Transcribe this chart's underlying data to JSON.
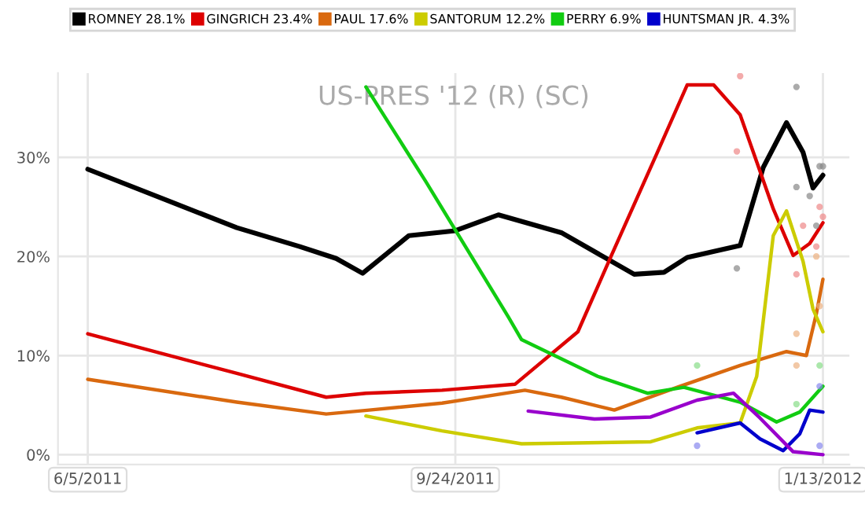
{
  "chart_data": {
    "type": "line",
    "title": "US-PRES '12 (R) (SC)",
    "xlim": [
      "2011-05-27",
      "2012-01-21"
    ],
    "ylim": [
      -1,
      38.5
    ],
    "xticks": [
      {
        "value": "2011-06-05",
        "label": "6/5/2011"
      },
      {
        "value": "2011-09-24",
        "label": "9/24/2011"
      },
      {
        "value": "2012-01-13",
        "label": "1/13/2012"
      }
    ],
    "yticks": [
      {
        "value": 0,
        "label": "0%"
      },
      {
        "value": 10,
        "label": "10%"
      },
      {
        "value": 20,
        "label": "20%"
      },
      {
        "value": 30,
        "label": "30%"
      }
    ],
    "grid": true,
    "legend": "top",
    "series": [
      {
        "name": "ROMNEY 28.1%",
        "color": "#000000",
        "x": [
          "2011-06-05",
          "2011-07-20",
          "2011-08-08",
          "2011-08-19",
          "2011-08-27",
          "2011-09-10",
          "2011-09-24",
          "2011-10-07",
          "2011-10-26",
          "2011-11-17",
          "2011-11-26",
          "2011-12-03",
          "2011-12-19",
          "2011-12-26",
          "2012-01-02",
          "2012-01-07",
          "2012-01-10",
          "2012-01-13"
        ],
        "values": [
          28.8,
          22.9,
          21.0,
          19.8,
          18.3,
          22.1,
          22.6,
          24.2,
          22.4,
          18.2,
          18.4,
          19.9,
          21.1,
          29.0,
          33.5,
          30.5,
          26.9,
          28.2
        ]
      },
      {
        "name": "GINGRICH 23.4%",
        "color": "#dd0000",
        "x": [
          "2011-06-05",
          "2011-07-20",
          "2011-08-16",
          "2011-08-28",
          "2011-09-20",
          "2011-10-12",
          "2011-10-31",
          "2011-11-10",
          "2011-11-24",
          "2011-12-03",
          "2011-12-11",
          "2011-12-19",
          "2011-12-29",
          "2012-01-04",
          "2012-01-09",
          "2012-01-13"
        ],
        "values": [
          12.2,
          8.2,
          5.8,
          6.2,
          6.5,
          7.1,
          12.4,
          20.0,
          30.5,
          37.3,
          37.3,
          34.3,
          24.8,
          20.1,
          21.3,
          23.4
        ]
      },
      {
        "name": "PAUL 17.6%",
        "color": "#d9690f",
        "x": [
          "2011-06-05",
          "2011-07-20",
          "2011-08-16",
          "2011-08-29",
          "2011-09-20",
          "2011-10-15",
          "2011-10-26",
          "2011-11-11",
          "2011-11-30",
          "2011-12-19",
          "2012-01-02",
          "2012-01-08",
          "2012-01-11",
          "2012-01-13"
        ],
        "values": [
          7.6,
          5.3,
          4.1,
          4.5,
          5.2,
          6.5,
          5.8,
          4.5,
          6.8,
          9.0,
          10.4,
          10.0,
          14.2,
          17.7
        ]
      },
      {
        "name": "SANTORUM 12.2%",
        "color": "#cccc00",
        "x": [
          "2011-08-28",
          "2011-09-20",
          "2011-10-14",
          "2011-11-22",
          "2011-12-06",
          "2011-12-19",
          "2011-12-24",
          "2011-12-29",
          "2012-01-02",
          "2012-01-07",
          "2012-01-10",
          "2012-01-13"
        ],
        "values": [
          3.9,
          2.4,
          1.1,
          1.3,
          2.7,
          3.2,
          7.9,
          22.1,
          24.6,
          19.5,
          14.7,
          12.4
        ]
      },
      {
        "name": "PERRY 6.9%",
        "color": "#11cc11",
        "x": [
          "2011-08-28",
          "2011-09-15",
          "2011-10-10",
          "2011-10-14",
          "2011-11-06",
          "2011-11-21",
          "2011-12-02",
          "2011-12-19",
          "2011-12-30",
          "2012-01-06",
          "2012-01-13"
        ],
        "values": [
          37.1,
          27.6,
          13.9,
          11.6,
          7.9,
          6.2,
          6.8,
          5.3,
          3.3,
          4.3,
          6.9
        ]
      },
      {
        "name": "HUNTSMAN JR. 4.3%",
        "color": "#0000cc",
        "x": [
          "2011-12-06",
          "2011-12-19",
          "2011-12-25",
          "2012-01-01",
          "2012-01-06",
          "2012-01-09",
          "2012-01-13"
        ],
        "values": [
          2.2,
          3.2,
          1.6,
          0.4,
          2.1,
          4.5,
          4.3
        ]
      },
      {
        "color": "#9900cc",
        "x": [
          "2011-10-16",
          "2011-11-05",
          "2011-11-22",
          "2011-12-06",
          "2011-12-17",
          "2011-12-25",
          "2012-01-04",
          "2012-01-13"
        ],
        "values": [
          4.4,
          3.6,
          3.8,
          5.5,
          6.2,
          3.7,
          0.3,
          0.0
        ]
      },
      {
        "type": "scatter",
        "color": "#888888",
        "x": [
          "2012-01-05",
          "2012-01-05",
          "2012-01-09",
          "2012-01-12",
          "2012-01-13",
          "2012-01-11",
          "2011-12-18"
        ],
        "values": [
          37.1,
          27.0,
          26.1,
          29.1,
          29.1,
          23.1,
          18.8
        ]
      },
      {
        "type": "scatter",
        "color": "#ee8888",
        "x": [
          "2011-12-19",
          "2011-12-18",
          "2012-01-05",
          "2012-01-07",
          "2012-01-12",
          "2012-01-13",
          "2012-01-11"
        ],
        "values": [
          38.2,
          30.6,
          18.2,
          23.1,
          25.0,
          24.0,
          21.0
        ]
      },
      {
        "type": "scatter",
        "color": "#ecb080",
        "x": [
          "2012-01-05",
          "2012-01-05",
          "2012-01-12",
          "2012-01-11"
        ],
        "values": [
          12.2,
          9.0,
          15.0,
          20.0
        ]
      },
      {
        "type": "scatter",
        "color": "#88dd88",
        "x": [
          "2012-01-12",
          "2012-01-05",
          "2011-12-06"
        ],
        "values": [
          9.0,
          5.1,
          9.0
        ]
      },
      {
        "type": "scatter",
        "color": "#8888ee",
        "x": [
          "2012-01-12",
          "2012-01-12",
          "2011-12-06"
        ],
        "values": [
          6.9,
          0.9,
          0.9
        ]
      }
    ]
  }
}
